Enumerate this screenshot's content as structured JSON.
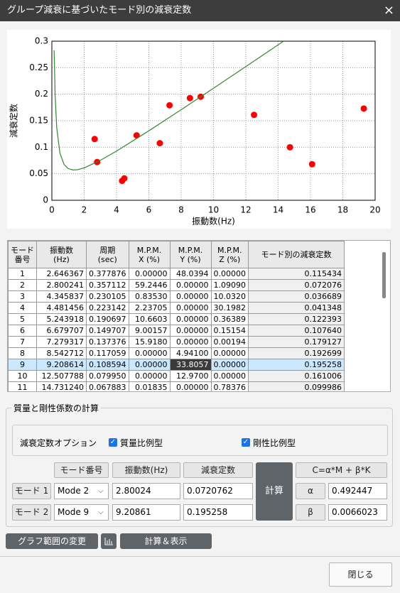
{
  "window": {
    "title": "グループ減衰に基づいたモード別の減衰定数",
    "close": "×"
  },
  "chart_data": {
    "type": "scatter",
    "xlabel": "振動数(Hz)",
    "ylabel": "減衰定数",
    "xlim": [
      0,
      20
    ],
    "ylim": [
      0,
      0.3
    ],
    "xticks": [
      0,
      2,
      4,
      6,
      8,
      10,
      12,
      14,
      16,
      18,
      20
    ],
    "yticks": [
      0,
      0.05,
      0.1,
      0.15,
      0.2,
      0.25,
      0.3
    ],
    "grid": true,
    "series": [
      {
        "type": "scatter",
        "color": "#ff0000",
        "x": [
          2.646367,
          2.800241,
          4.345837,
          4.481456,
          5.243918,
          6.679707,
          7.279317,
          8.542712,
          9.208614,
          12.507788,
          14.73124,
          16.1,
          19.3
        ],
        "values": [
          0.115434,
          0.072076,
          0.036689,
          0.041348,
          0.122393,
          0.10764,
          0.179127,
          0.192699,
          0.195258,
          0.161006,
          0.099986,
          0.068,
          0.173
        ]
      },
      {
        "type": "line",
        "color": "#2e8b2e",
        "x": [
          0.14,
          0.2,
          0.3,
          0.5,
          0.75,
          1,
          1.3,
          1.6,
          2,
          3,
          4,
          6,
          8,
          10,
          12,
          14.3
        ],
        "values": [
          0.2828,
          0.2,
          0.1368,
          0.0887,
          0.0678,
          0.0599,
          0.0571,
          0.0577,
          0.0611,
          0.0753,
          0.0928,
          0.131,
          0.1708,
          0.2113,
          0.2522,
          0.2993
        ]
      }
    ]
  },
  "table": {
    "header": [
      [
        "モード",
        "番号"
      ],
      [
        "振動数",
        "(Hz)"
      ],
      [
        "周期",
        "(sec)"
      ],
      [
        "M.P.M.",
        "X (%)"
      ],
      [
        "M.P.M.",
        "Y (%)"
      ],
      [
        "M.P.M.",
        "Z (%)"
      ],
      [
        "モード別の減衰定数"
      ]
    ],
    "rows": [
      [
        "1",
        "2.646367",
        "0.377876",
        "0.00000",
        "48.0394",
        "0.00000",
        "0.115434"
      ],
      [
        "2",
        "2.800241",
        "0.357112",
        "59.2446",
        "0.00000",
        "1.09090",
        "0.072076"
      ],
      [
        "3",
        "4.345837",
        "0.230105",
        "0.83530",
        "0.00000",
        "10.0320",
        "0.036689"
      ],
      [
        "4",
        "4.481456",
        "0.223142",
        "2.23705",
        "0.00000",
        "30.1982",
        "0.041348"
      ],
      [
        "5",
        "5.243918",
        "0.190697",
        "10.6603",
        "0.00000",
        "0.36389",
        "0.122393"
      ],
      [
        "6",
        "6.679707",
        "0.149707",
        "9.00157",
        "0.00000",
        "0.15154",
        "0.107640"
      ],
      [
        "7",
        "7.279317",
        "0.137376",
        "15.9180",
        "0.00000",
        "0.00194",
        "0.179127"
      ],
      [
        "8",
        "8.542712",
        "0.117059",
        "0.00000",
        "4.94100",
        "0.00000",
        "0.192699"
      ],
      [
        "9",
        "9.208614",
        "0.108594",
        "0.00000",
        "33.8057",
        "0.00000",
        "0.195258"
      ],
      [
        "10",
        "12.507788",
        "0.079950",
        "0.00000",
        "12.9700",
        "0.00000",
        "0.161006"
      ],
      [
        "11",
        "14.731240",
        "0.067883",
        "0.01835",
        "0.00000",
        "0.78376",
        "0.099986"
      ]
    ]
  },
  "calc": {
    "group_title": "質量と剛性係数の計算",
    "option_label": "減衰定数オプション",
    "mass_check": "質量比例型",
    "stiff_check": "剛性比例型",
    "col_mode": "モード番号",
    "col_freq": "振動数(Hz)",
    "col_damp": "減衰定数",
    "calc_button": "計算",
    "formula": "C=α*M + β*K",
    "rows": [
      {
        "label": "モード 1",
        "mode": "Mode 2",
        "freq": "2.80024",
        "damp": "0.0720762",
        "coef_label": "α",
        "coef": "0.492447"
      },
      {
        "label": "モード 2",
        "mode": "Mode 9",
        "freq": "9.20861",
        "damp": "0.195258",
        "coef_label": "β",
        "coef": "0.0066023"
      }
    ]
  },
  "footer": {
    "range_button": "グラフ範囲の変更",
    "calc_show_button": "計算＆表示",
    "close_button": "閉じる"
  }
}
